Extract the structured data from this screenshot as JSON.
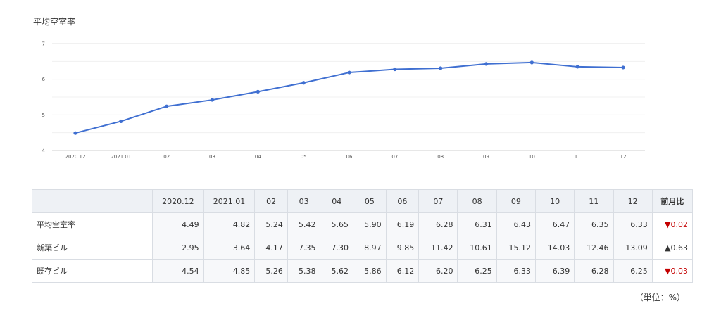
{
  "title": "平均空室率",
  "chart_data": {
    "type": "line",
    "title": "平均空室率",
    "categories": [
      "2020.12",
      "2021.01",
      "02",
      "03",
      "04",
      "05",
      "06",
      "07",
      "08",
      "09",
      "10",
      "11",
      "12"
    ],
    "series": [
      {
        "values": [
          4.49,
          4.82,
          5.24,
          5.42,
          5.65,
          5.9,
          6.19,
          6.28,
          6.31,
          6.43,
          6.47,
          6.35,
          6.33
        ]
      }
    ],
    "ylim": [
      4,
      7
    ],
    "yticks": [
      4,
      5,
      6,
      7
    ],
    "grid": true,
    "color": "#3f6fd1"
  },
  "table": {
    "headers": [
      "",
      "2020.12",
      "2021.01",
      "02",
      "03",
      "04",
      "05",
      "06",
      "07",
      "08",
      "09",
      "10",
      "11",
      "12",
      "前月比"
    ],
    "rows": [
      {
        "label": "平均空室率",
        "values": [
          "4.49",
          "4.82",
          "5.24",
          "5.42",
          "5.65",
          "5.90",
          "6.19",
          "6.28",
          "6.31",
          "6.43",
          "6.47",
          "6.35",
          "6.33"
        ],
        "change": "▼0.02",
        "direction": "down"
      },
      {
        "label": "新築ビル",
        "values": [
          "2.95",
          "3.64",
          "4.17",
          "7.35",
          "7.30",
          "8.97",
          "9.85",
          "11.42",
          "10.61",
          "15.12",
          "14.03",
          "12.46",
          "13.09"
        ],
        "change": "▲0.63",
        "direction": "up"
      },
      {
        "label": "既存ビル",
        "values": [
          "4.54",
          "4.85",
          "5.26",
          "5.38",
          "5.62",
          "5.86",
          "6.12",
          "6.20",
          "6.25",
          "6.33",
          "6.39",
          "6.28",
          "6.25"
        ],
        "change": "▼0.03",
        "direction": "down"
      }
    ]
  },
  "unit_note": "（単位：%）",
  "colors": {
    "line": "#3f6fd1",
    "down": "#c40000",
    "grid": "#e3e3e3"
  }
}
